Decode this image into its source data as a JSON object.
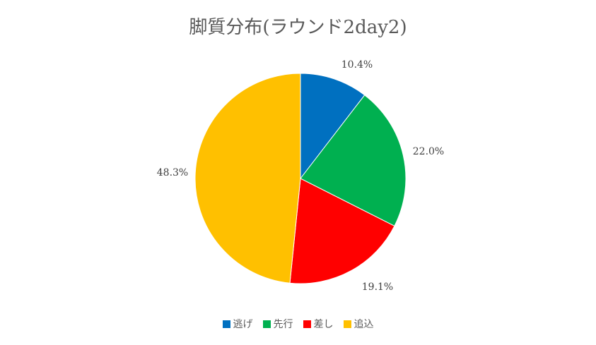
{
  "chart_data": {
    "type": "pie",
    "title": "脚質分布(ラウンド2day2)",
    "categories": [
      "逃げ",
      "先行",
      "差し",
      "追込"
    ],
    "values": [
      10.4,
      22.0,
      19.1,
      48.3
    ],
    "labels": [
      "10.4%",
      "22.0%",
      "19.1%",
      "48.3%"
    ],
    "colors": [
      "#0070c0",
      "#00b050",
      "#ff0000",
      "#ffc000"
    ],
    "legend_position": "bottom",
    "start_angle": "12 o'clock",
    "direction": "clockwise"
  }
}
